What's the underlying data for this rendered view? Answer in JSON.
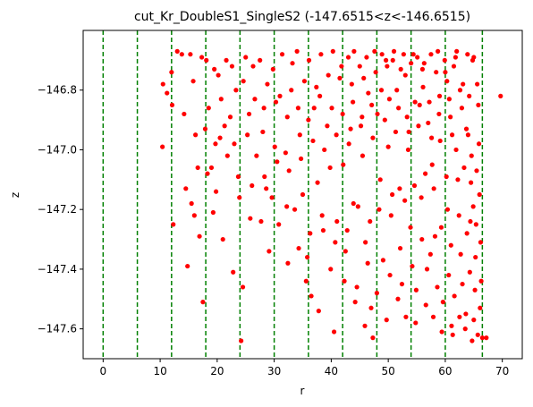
{
  "chart_data": {
    "type": "scatter",
    "title": "cut_Kr_DoubleS1_SingleS2 (-147.6515<z<-146.6515)",
    "xlabel": "r",
    "ylabel": "z",
    "xlim": [
      -3.5,
      73.5
    ],
    "ylim": [
      -147.7,
      -146.6
    ],
    "xticks": [
      0,
      10,
      20,
      30,
      40,
      50,
      60,
      70
    ],
    "xtick_labels": [
      "0",
      "10",
      "20",
      "30",
      "40",
      "50",
      "60",
      "70"
    ],
    "yticks": [
      -147.6,
      -147.4,
      -147.2,
      -147.0,
      -146.8
    ],
    "ytick_labels": [
      "−147.6",
      "−147.4",
      "−147.2",
      "−147.0",
      "−146.8"
    ],
    "grid": false,
    "colors": {
      "points": "#ff0000",
      "vlines": "#008000",
      "axes": "#000000"
    },
    "vlines": [
      0,
      6,
      12,
      18,
      24,
      30,
      36,
      42,
      48,
      54,
      60,
      66.5
    ],
    "series": [
      {
        "points": [
          [
            10.5,
            -146.78
          ],
          [
            10.4,
            -146.99
          ],
          [
            11.2,
            -146.81
          ],
          [
            12.0,
            -146.74
          ],
          [
            12.1,
            -146.85
          ],
          [
            12.3,
            -147.25
          ],
          [
            13.0,
            -146.67
          ],
          [
            13.8,
            -146.68
          ],
          [
            14.2,
            -146.88
          ],
          [
            14.5,
            -147.13
          ],
          [
            14.8,
            -147.39
          ],
          [
            15.3,
            -146.68
          ],
          [
            15.8,
            -146.77
          ],
          [
            16.2,
            -146.95
          ],
          [
            16.0,
            -147.22
          ],
          [
            16.9,
            -147.29
          ],
          [
            17.3,
            -146.69
          ],
          [
            17.5,
            -147.51
          ],
          [
            18.1,
            -146.7
          ],
          [
            18.5,
            -146.86
          ],
          [
            19.0,
            -147.06
          ],
          [
            19.3,
            -147.21
          ],
          [
            20.2,
            -146.75
          ],
          [
            20.5,
            -146.96
          ],
          [
            21.0,
            -147.3
          ],
          [
            21.6,
            -146.7
          ],
          [
            22.3,
            -146.89
          ],
          [
            22.8,
            -147.41
          ],
          [
            23.3,
            -146.8
          ],
          [
            23.7,
            -147.09
          ],
          [
            24.2,
            -147.64
          ],
          [
            24.5,
            -147.46
          ],
          [
            25.0,
            -146.69
          ],
          [
            25.3,
            -146.95
          ],
          [
            25.8,
            -147.23
          ],
          [
            26.3,
            -146.72
          ],
          [
            26.9,
            -147.02
          ],
          [
            27.5,
            -146.7
          ],
          [
            28.2,
            -146.86
          ],
          [
            28.6,
            -147.13
          ],
          [
            29.1,
            -147.34
          ],
          [
            29.8,
            -146.73
          ],
          [
            30.1,
            -146.99
          ],
          [
            30.8,
            -147.25
          ],
          [
            31.4,
            -146.68
          ],
          [
            32.0,
            -147.01
          ],
          [
            32.4,
            -147.38
          ],
          [
            33.0,
            -146.8
          ],
          [
            33.6,
            -147.2
          ],
          [
            34.0,
            -146.67
          ],
          [
            34.5,
            -146.95
          ],
          [
            35.0,
            -147.15
          ],
          [
            35.6,
            -147.44
          ],
          [
            36.1,
            -146.7
          ],
          [
            36.5,
            -147.49
          ],
          [
            37.0,
            -146.86
          ],
          [
            37.6,
            -147.11
          ],
          [
            38.2,
            -146.68
          ],
          [
            38.6,
            -147.27
          ],
          [
            39.3,
            -146.92
          ],
          [
            39.8,
            -147.06
          ],
          [
            40.3,
            -146.67
          ],
          [
            40.5,
            -147.61
          ],
          [
            41.0,
            -147.24
          ],
          [
            41.5,
            -146.76
          ],
          [
            42.1,
            -147.05
          ],
          [
            42.5,
            -147.34
          ],
          [
            43.0,
            -146.69
          ],
          [
            43.4,
            -146.93
          ],
          [
            43.9,
            -147.18
          ],
          [
            44.5,
            -147.46
          ],
          [
            45.0,
            -146.72
          ],
          [
            45.5,
            -147.02
          ],
          [
            46.0,
            -147.31
          ],
          [
            46.5,
            -146.81
          ],
          [
            47.0,
            -147.53
          ],
          [
            47.3,
            -147.63
          ],
          [
            47.6,
            -146.67
          ],
          [
            48.1,
            -146.88
          ],
          [
            48.6,
            -147.1
          ],
          [
            49.1,
            -147.37
          ],
          [
            49.6,
            -146.7
          ],
          [
            50.0,
            -146.99
          ],
          [
            50.5,
            -147.22
          ],
          [
            51.0,
            -146.67
          ],
          [
            51.5,
            -146.8
          ],
          [
            52.0,
            -147.13
          ],
          [
            52.4,
            -147.45
          ],
          [
            53.0,
            -146.75
          ],
          [
            53.5,
            -147.0
          ],
          [
            53.9,
            -147.26
          ],
          [
            54.4,
            -146.68
          ],
          [
            54.8,
            -147.58
          ],
          [
            55.3,
            -146.92
          ],
          [
            55.8,
            -147.16
          ],
          [
            56.3,
            -146.71
          ],
          [
            56.8,
            -147.4
          ],
          [
            57.2,
            -146.84
          ],
          [
            57.7,
            -147.05
          ],
          [
            58.2,
            -147.29
          ],
          [
            58.7,
            -146.67
          ],
          [
            59.1,
            -146.97
          ],
          [
            59.6,
            -147.51
          ],
          [
            60.0,
            -146.74
          ],
          [
            60.4,
            -147.2
          ],
          [
            60.9,
            -146.89
          ],
          [
            61.3,
            -147.62
          ],
          [
            61.8,
            -146.69
          ],
          [
            62.2,
            -147.1
          ],
          [
            62.7,
            -147.35
          ],
          [
            63.1,
            -146.78
          ],
          [
            63.6,
            -147.55
          ],
          [
            64.0,
            -146.95
          ],
          [
            64.4,
            -147.24
          ],
          [
            64.8,
            -146.7
          ],
          [
            65.2,
            -147.47
          ],
          [
            65.5,
            -147.07
          ],
          [
            65.8,
            -146.85
          ],
          [
            66.2,
            -147.31
          ],
          [
            66.5,
            -147.63
          ],
          [
            67.2,
            -147.63
          ],
          [
            69.7,
            -146.82
          ],
          [
            44.0,
            -146.67
          ],
          [
            46.2,
            -146.69
          ],
          [
            48.9,
            -146.68
          ],
          [
            50.8,
            -146.7
          ],
          [
            52.7,
            -146.68
          ],
          [
            55.1,
            -146.69
          ],
          [
            57.5,
            -146.68
          ],
          [
            59.9,
            -146.7
          ],
          [
            62.0,
            -146.67
          ],
          [
            63.9,
            -146.68
          ],
          [
            65.0,
            -146.69
          ],
          [
            61.5,
            -146.72
          ],
          [
            58.4,
            -146.74
          ],
          [
            56.0,
            -146.73
          ],
          [
            54.0,
            -146.71
          ],
          [
            52.2,
            -146.73
          ],
          [
            49.8,
            -146.72
          ],
          [
            47.8,
            -146.74
          ],
          [
            45.7,
            -146.76
          ],
          [
            43.6,
            -146.78
          ],
          [
            41.8,
            -146.72
          ],
          [
            39.5,
            -146.75
          ],
          [
            37.4,
            -146.79
          ],
          [
            35.3,
            -146.77
          ],
          [
            33.2,
            -146.71
          ],
          [
            31.0,
            -146.82
          ],
          [
            28.8,
            -146.78
          ],
          [
            26.6,
            -146.83
          ],
          [
            24.6,
            -146.77
          ],
          [
            22.6,
            -146.72
          ],
          [
            20.7,
            -146.83
          ],
          [
            19.5,
            -146.73
          ],
          [
            65.6,
            -146.78
          ],
          [
            64.2,
            -146.82
          ],
          [
            62.9,
            -146.86
          ],
          [
            60.7,
            -146.83
          ],
          [
            58.9,
            -146.88
          ],
          [
            57.0,
            -146.91
          ],
          [
            55.5,
            -146.85
          ],
          [
            53.3,
            -146.89
          ],
          [
            51.3,
            -146.94
          ],
          [
            49.4,
            -146.9
          ],
          [
            47.3,
            -146.96
          ],
          [
            45.2,
            -146.92
          ],
          [
            43.1,
            -146.98
          ],
          [
            40.9,
            -146.95
          ],
          [
            38.8,
            -147.0
          ],
          [
            36.8,
            -146.97
          ],
          [
            34.7,
            -147.03
          ],
          [
            32.6,
            -147.07
          ],
          [
            30.5,
            -147.04
          ],
          [
            28.3,
            -147.09
          ],
          [
            26.1,
            -147.12
          ],
          [
            23.9,
            -147.16
          ],
          [
            21.8,
            -147.02
          ],
          [
            19.8,
            -147.14
          ],
          [
            17.9,
            -146.93
          ],
          [
            65.9,
            -146.98
          ],
          [
            64.6,
            -147.02
          ],
          [
            63.3,
            -147.06
          ],
          [
            61.9,
            -147.0
          ],
          [
            60.2,
            -147.09
          ],
          [
            58.0,
            -147.13
          ],
          [
            56.5,
            -147.08
          ],
          [
            54.6,
            -147.12
          ],
          [
            52.9,
            -147.17
          ],
          [
            50.7,
            -147.15
          ],
          [
            48.4,
            -147.2
          ],
          [
            46.8,
            -147.24
          ],
          [
            44.7,
            -147.19
          ],
          [
            42.8,
            -147.27
          ],
          [
            40.7,
            -147.31
          ],
          [
            38.4,
            -147.22
          ],
          [
            36.3,
            -147.28
          ],
          [
            34.3,
            -147.33
          ],
          [
            32.2,
            -147.19
          ],
          [
            29.6,
            -147.16
          ],
          [
            27.7,
            -147.24
          ],
          [
            66.0,
            -147.15
          ],
          [
            64.9,
            -147.19
          ],
          [
            63.8,
            -147.28
          ],
          [
            62.4,
            -147.22
          ],
          [
            61.0,
            -147.32
          ],
          [
            59.3,
            -147.26
          ],
          [
            57.4,
            -147.35
          ],
          [
            55.9,
            -147.3
          ],
          [
            54.2,
            -147.39
          ],
          [
            52.1,
            -147.33
          ],
          [
            50.3,
            -147.42
          ],
          [
            48.0,
            -147.48
          ],
          [
            46.4,
            -147.38
          ],
          [
            44.2,
            -147.51
          ],
          [
            42.3,
            -147.44
          ],
          [
            39.9,
            -147.4
          ],
          [
            37.8,
            -147.54
          ],
          [
            35.8,
            -147.36
          ],
          [
            65.3,
            -147.36
          ],
          [
            64.3,
            -147.41
          ],
          [
            63.0,
            -147.45
          ],
          [
            61.6,
            -147.49
          ],
          [
            60.6,
            -147.42
          ],
          [
            58.6,
            -147.46
          ],
          [
            56.6,
            -147.52
          ],
          [
            54.9,
            -147.47
          ],
          [
            53.1,
            -147.56
          ],
          [
            51.7,
            -147.5
          ],
          [
            49.7,
            -147.57
          ],
          [
            45.9,
            -147.59
          ],
          [
            66.1,
            -147.53
          ],
          [
            65.0,
            -147.57
          ],
          [
            63.5,
            -147.6
          ],
          [
            62.5,
            -147.56
          ],
          [
            61.1,
            -147.59
          ],
          [
            59.4,
            -147.61
          ],
          [
            57.9,
            -147.56
          ],
          [
            64.7,
            -147.64
          ],
          [
            65.7,
            -147.62
          ],
          [
            66.3,
            -147.44
          ],
          [
            65.4,
            -147.25
          ],
          [
            64.5,
            -147.11
          ],
          [
            63.7,
            -146.93
          ],
          [
            62.6,
            -146.8
          ],
          [
            61.2,
            -146.95
          ],
          [
            60.3,
            -146.77
          ],
          [
            59.0,
            -146.82
          ],
          [
            57.6,
            -146.96
          ],
          [
            56.1,
            -146.79
          ],
          [
            54.7,
            -146.84
          ],
          [
            53.6,
            -146.94
          ],
          [
            51.8,
            -146.86
          ],
          [
            50.2,
            -146.83
          ],
          [
            48.8,
            -146.8
          ],
          [
            47.1,
            -146.85
          ],
          [
            45.4,
            -146.89
          ],
          [
            43.8,
            -146.84
          ],
          [
            42.0,
            -146.88
          ],
          [
            40.1,
            -146.86
          ],
          [
            38.0,
            -146.82
          ],
          [
            36.0,
            -146.9
          ],
          [
            34.2,
            -146.86
          ],
          [
            32.3,
            -146.89
          ],
          [
            30.3,
            -146.84
          ],
          [
            28.0,
            -146.94
          ],
          [
            25.6,
            -146.88
          ],
          [
            23.0,
            -146.98
          ],
          [
            21.3,
            -146.92
          ],
          [
            19.7,
            -146.98
          ],
          [
            18.3,
            -147.08
          ],
          [
            16.6,
            -147.06
          ],
          [
            15.5,
            -147.18
          ]
        ]
      }
    ]
  }
}
